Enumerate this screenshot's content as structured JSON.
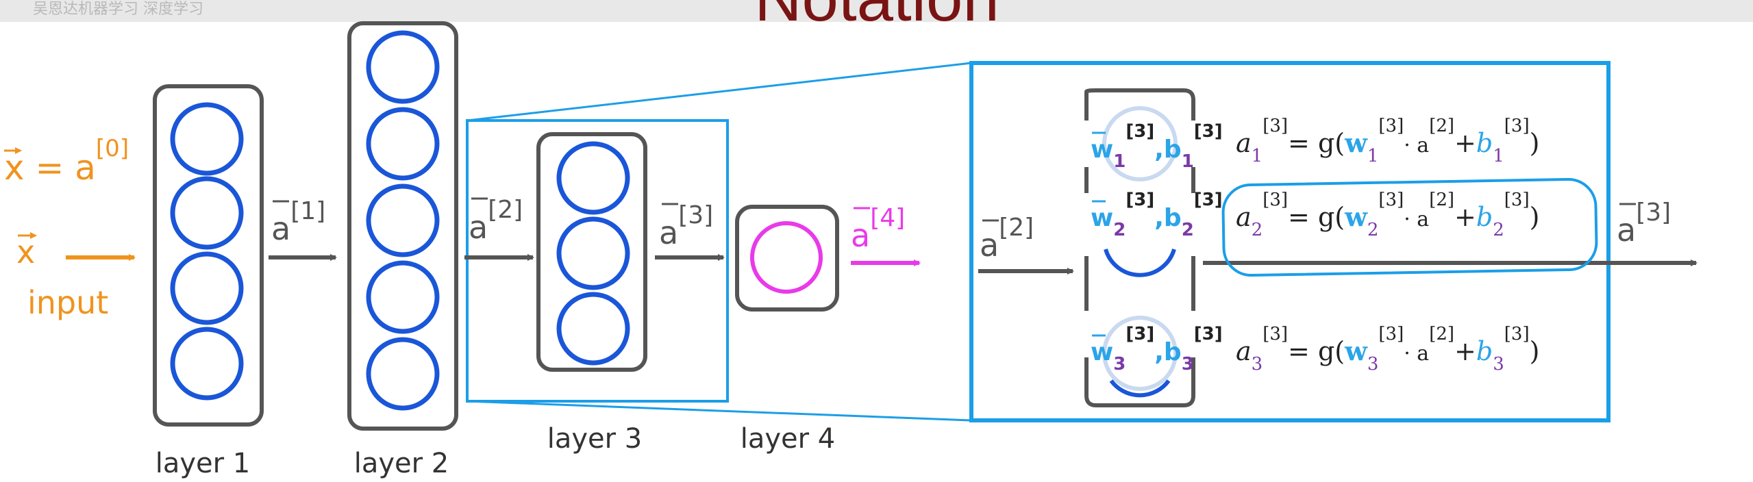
{
  "title": "Notation",
  "watermark": "吴恩达机器学习 深度学习",
  "colors": {
    "orange": "#f0931e",
    "blue_circle": "#1a56d8",
    "magenta": "#e93ae9",
    "dark_red": "#7a1414",
    "frame_blue": "#1b9ee8",
    "gray": "#555555",
    "w_blue": "#2ba4e8",
    "sub_purple": "#7a3aa8"
  },
  "input": {
    "x_eq": "x = a",
    "x_eq_sup": "[0]",
    "x_label": "x",
    "input_label": "input"
  },
  "layers": [
    {
      "label": "layer 1",
      "units": 4
    },
    {
      "label": "layer 2",
      "units": 5
    },
    {
      "label": "layer 3",
      "units": 3
    },
    {
      "label": "layer 4",
      "units": 1
    }
  ],
  "arrows": [
    {
      "text": "a",
      "sup": "[1]"
    },
    {
      "text": "a",
      "sup": "[2]"
    },
    {
      "text": "a",
      "sup": "[3]"
    },
    {
      "text": "a",
      "sup": "[4]"
    }
  ],
  "detail": {
    "input_arrow": {
      "text": "a",
      "sup": "[2]"
    },
    "output_arrow": {
      "text": "a",
      "sup": "[3]"
    },
    "units": [
      {
        "w": "w",
        "w_sub": "1",
        "b": "b",
        "b_sub": "1",
        "sup": "[3]",
        "eq_a": "a",
        "eq_a_sub": "1",
        "eq_a_sup": "[3]",
        "eq_g": "= g(",
        "eq_w": "w",
        "eq_w_sub": "1",
        "eq_w_sup": "[3]",
        "eq_dot": "· a",
        "eq_prev_sup": "[2]",
        "eq_plus": "+",
        "eq_b": "b",
        "eq_b_sub": "1",
        "eq_b_sup": "[3]",
        "eq_close": ")"
      },
      {
        "w": "w",
        "w_sub": "2",
        "b": "b",
        "b_sub": "2",
        "sup": "[3]",
        "eq_a": "a",
        "eq_a_sub": "2",
        "eq_a_sup": "[3]",
        "eq_g": "= g(",
        "eq_w": "w",
        "eq_w_sub": "2",
        "eq_w_sup": "[3]",
        "eq_dot": "· a",
        "eq_prev_sup": "[2]",
        "eq_plus": "+",
        "eq_b": "b",
        "eq_b_sub": "2",
        "eq_b_sup": "[3]",
        "eq_close": ")"
      },
      {
        "w": "w",
        "w_sub": "3",
        "b": "b",
        "b_sub": "3",
        "sup": "[3]",
        "eq_a": "a",
        "eq_a_sub": "3",
        "eq_a_sup": "[3]",
        "eq_g": "= g(",
        "eq_w": "w",
        "eq_w_sub": "3",
        "eq_w_sup": "[3]",
        "eq_dot": "· a",
        "eq_prev_sup": "[2]",
        "eq_plus": "+",
        "eq_b": "b",
        "eq_b_sub": "3",
        "eq_b_sup": "[3]",
        "eq_close": ")"
      }
    ]
  }
}
